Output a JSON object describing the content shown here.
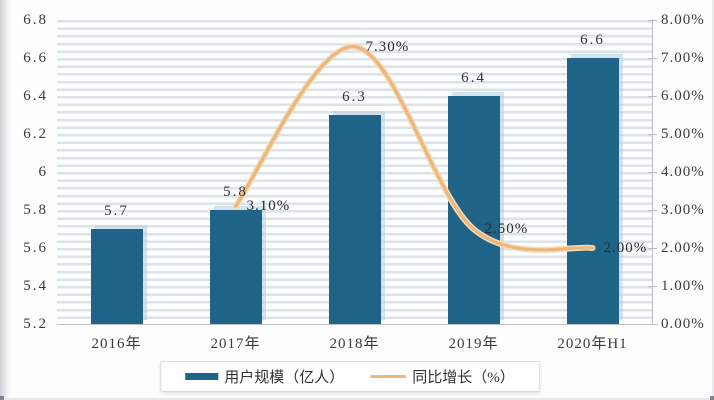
{
  "chart_data": {
    "type": "bar",
    "combo": "bar+line",
    "title": "",
    "xlabel": "",
    "ylabel": "",
    "categories": [
      "2016年",
      "2017年",
      "2018年",
      "2019年",
      "2020年H1"
    ],
    "series": [
      {
        "name": "用户规模（亿人）",
        "type": "bar",
        "axis": "left",
        "values": [
          5.7,
          5.8,
          6.3,
          6.4,
          6.6
        ],
        "labels": [
          "5.7",
          "5.8",
          "6.3",
          "6.4",
          "6.6"
        ],
        "color": "#1f6488"
      },
      {
        "name": "同比增长（%）",
        "type": "line",
        "axis": "right",
        "values": [
          null,
          3.1,
          7.3,
          2.5,
          2.0
        ],
        "labels": [
          null,
          "3.10%",
          "7.30%",
          "2.50%",
          "2.00%"
        ],
        "color": "#ecb77e"
      }
    ],
    "left_axis": {
      "min": 5.2,
      "max": 6.8,
      "tick_labels_bottom_to_top": [
        "5.2",
        "5.4",
        "5.6",
        "5.8",
        "6",
        "6.2",
        "6.4",
        "6.6",
        "6.8"
      ]
    },
    "right_axis": {
      "min": 0,
      "max": 8,
      "tick_labels_bottom_to_top": [
        "0.00%",
        "1.00%",
        "2.00%",
        "3.00%",
        "4.00%",
        "5.00%",
        "6.00%",
        "7.00%",
        "8.00%"
      ]
    },
    "grid": "horizontal-minor-stripes",
    "legend_position": "bottom-center",
    "legend": [
      {
        "label": "用户规模（亿人）",
        "swatch": "bar",
        "color": "#1f6488"
      },
      {
        "label": "同比增长（%）",
        "swatch": "line",
        "color": "#ecb77e"
      }
    ]
  },
  "colors": {
    "bar": "#1f6488",
    "bar_shadow": "rgba(188,211,224,0.62)",
    "line": "#ecb77e",
    "line_halo": "#f6dcb4",
    "stripe": "#dce3eb",
    "axis_line": "#b9bec4",
    "text": "#3a3a3a",
    "card_bg": "#fdfdfe",
    "page_bg": "#f3f3f4"
  }
}
